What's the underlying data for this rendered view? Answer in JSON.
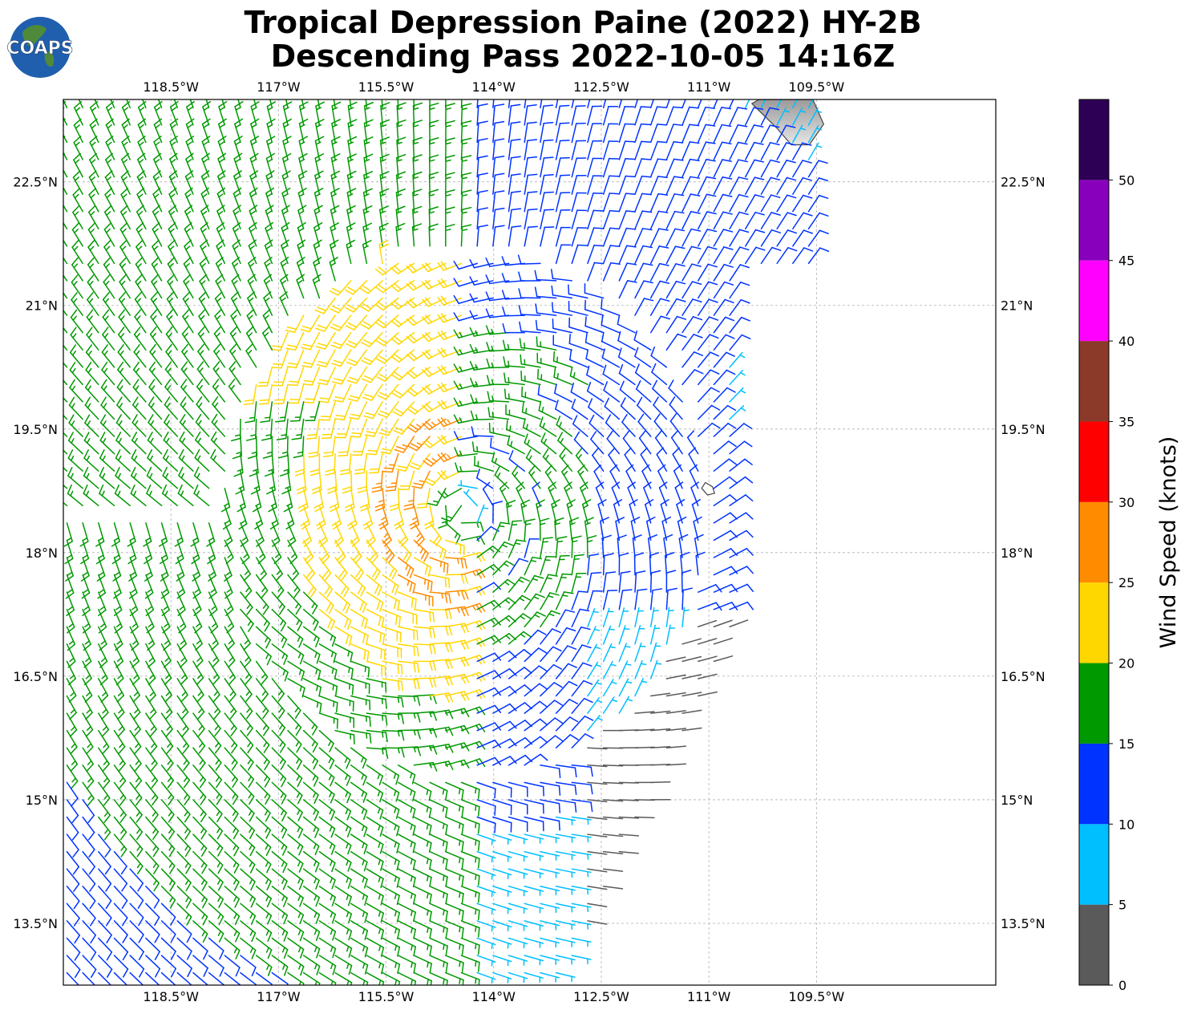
{
  "title": {
    "line1": "Tropical Depression Paine (2022) HY-2B",
    "line2": "Descending Pass 2022-10-05 14:16Z"
  },
  "logo": {
    "text": "COAPS",
    "icon": "globe-logo-icon"
  },
  "map": {
    "lon_range": [
      -120.0,
      -107.0
    ],
    "lat_range": [
      12.75,
      23.5
    ],
    "lon_ticks": [
      {
        "value": -118.5,
        "label": "118.5°W"
      },
      {
        "value": -117.0,
        "label": "117°W"
      },
      {
        "value": -115.5,
        "label": "115.5°W"
      },
      {
        "value": -114.0,
        "label": "114°W"
      },
      {
        "value": -112.5,
        "label": "112.5°W"
      },
      {
        "value": -111.0,
        "label": "111°W"
      },
      {
        "value": -109.5,
        "label": "109.5°W"
      }
    ],
    "lat_ticks": [
      {
        "value": 22.5,
        "label": "22.5°N"
      },
      {
        "value": 21.0,
        "label": "21°N"
      },
      {
        "value": 19.5,
        "label": "19.5°N"
      },
      {
        "value": 18.0,
        "label": "18°N"
      },
      {
        "value": 16.5,
        "label": "16.5°N"
      },
      {
        "value": 15.0,
        "label": "15°N"
      },
      {
        "value": 13.5,
        "label": "13.5°N"
      }
    ],
    "gridlines": true,
    "storm_center": {
      "lon": -114.4,
      "lat": 18.5
    },
    "swath_east_edge_lon": -110.7,
    "land_color": "#cfcfcf",
    "coast_color": "#444444",
    "land_polygon": [
      [
        -110.3,
        23.5
      ],
      [
        -109.55,
        23.5
      ],
      [
        -109.4,
        23.2
      ],
      [
        -109.6,
        22.95
      ],
      [
        -109.85,
        22.95
      ],
      [
        -110.05,
        23.15
      ],
      [
        -110.4,
        23.45
      ]
    ],
    "island_polygon": [
      [
        -111.05,
        18.85
      ],
      [
        -110.95,
        18.8
      ],
      [
        -110.92,
        18.72
      ],
      [
        -111.02,
        18.7
      ],
      [
        -111.1,
        18.78
      ]
    ]
  },
  "colorbar": {
    "label": "Wind Speed (knots)",
    "range": [
      0,
      55
    ],
    "bins": [
      {
        "min": 0,
        "max": 5,
        "color": "#5a5a5a"
      },
      {
        "min": 5,
        "max": 10,
        "color": "#00bfff"
      },
      {
        "min": 10,
        "max": 15,
        "color": "#0033ff"
      },
      {
        "min": 15,
        "max": 20,
        "color": "#009900"
      },
      {
        "min": 20,
        "max": 25,
        "color": "#ffd700"
      },
      {
        "min": 25,
        "max": 30,
        "color": "#ff8c00"
      },
      {
        "min": 30,
        "max": 35,
        "color": "#ff0000"
      },
      {
        "min": 35,
        "max": 40,
        "color": "#8b3a2a"
      },
      {
        "min": 40,
        "max": 45,
        "color": "#ff00ff"
      },
      {
        "min": 45,
        "max": 50,
        "color": "#8800bb"
      },
      {
        "min": 50,
        "max": 55,
        "color": "#2e0055"
      }
    ],
    "ticks": [
      {
        "value": 0,
        "label": "0"
      },
      {
        "value": 5,
        "label": "5"
      },
      {
        "value": 10,
        "label": "10"
      },
      {
        "value": 15,
        "label": "15"
      },
      {
        "value": 20,
        "label": "20"
      },
      {
        "value": 25,
        "label": "25"
      },
      {
        "value": 30,
        "label": "30"
      },
      {
        "value": 35,
        "label": "35"
      },
      {
        "value": 40,
        "label": "40"
      },
      {
        "value": 45,
        "label": "45"
      },
      {
        "value": 50,
        "label": "50"
      }
    ]
  }
}
